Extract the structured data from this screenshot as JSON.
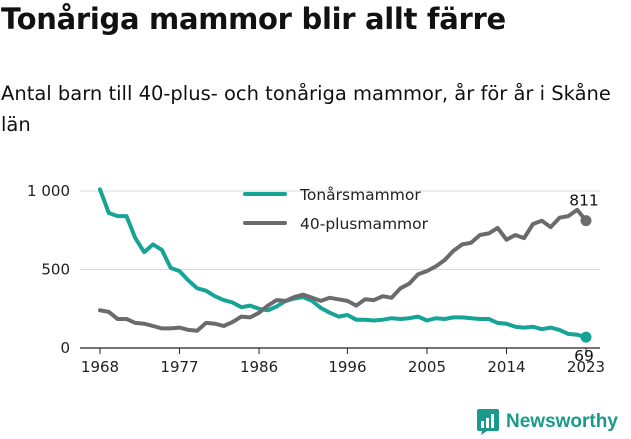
{
  "title": "Tonåriga mammor blir allt färre",
  "subtitle": "Antal barn till 40-plus- och tonåriga mammor, år för år i Skåne län",
  "brand": {
    "name": "Newsworthy",
    "icon": "newsworthy-chart-icon"
  },
  "colors": {
    "teen": "#16a497",
    "forty": "#6b6b6e",
    "grid": "#d9d9d9",
    "axis": "#222222"
  },
  "chart_data": {
    "type": "line",
    "title": "Tonåriga mammor blir allt färre",
    "xlabel": "",
    "ylabel": "",
    "xlim": [
      1968,
      2023
    ],
    "ylim": [
      0,
      1000
    ],
    "yticks": [
      0,
      500,
      1000
    ],
    "ytick_labels": [
      "0",
      "500",
      "1 000"
    ],
    "xticks": [
      1968,
      1977,
      1986,
      1996,
      2005,
      2014,
      2023
    ],
    "xtick_labels": [
      "1968",
      "1977",
      "1986",
      "1996",
      "2005",
      "2014",
      "2023"
    ],
    "grid": true,
    "legend": "top-center",
    "x": [
      1968,
      1969,
      1970,
      1971,
      1972,
      1973,
      1974,
      1975,
      1976,
      1977,
      1978,
      1979,
      1980,
      1981,
      1982,
      1983,
      1984,
      1985,
      1986,
      1987,
      1988,
      1989,
      1990,
      1991,
      1992,
      1993,
      1994,
      1995,
      1996,
      1997,
      1998,
      1999,
      2000,
      2001,
      2002,
      2003,
      2004,
      2005,
      2006,
      2007,
      2008,
      2009,
      2010,
      2011,
      2012,
      2013,
      2014,
      2015,
      2016,
      2017,
      2018,
      2019,
      2020,
      2021,
      2022,
      2023
    ],
    "series": [
      {
        "name": "Tonårsmammor",
        "color": "#16a497",
        "end_label": "69",
        "values": [
          1010,
          860,
          840,
          840,
          700,
          610,
          660,
          625,
          510,
          490,
          430,
          380,
          365,
          330,
          305,
          290,
          260,
          270,
          250,
          240,
          265,
          300,
          315,
          325,
          300,
          255,
          225,
          200,
          210,
          180,
          180,
          175,
          180,
          190,
          185,
          190,
          200,
          175,
          190,
          185,
          195,
          195,
          190,
          185,
          185,
          160,
          155,
          135,
          130,
          135,
          120,
          130,
          115,
          90,
          85,
          69
        ]
      },
      {
        "name": "40-plusmammor",
        "color": "#6b6b6e",
        "end_label": "811",
        "values": [
          240,
          230,
          185,
          185,
          160,
          155,
          140,
          125,
          125,
          130,
          115,
          110,
          160,
          155,
          140,
          165,
          200,
          195,
          225,
          270,
          305,
          300,
          325,
          340,
          320,
          300,
          320,
          310,
          300,
          270,
          310,
          305,
          330,
          320,
          380,
          410,
          470,
          490,
          520,
          560,
          620,
          660,
          670,
          720,
          730,
          765,
          690,
          720,
          700,
          790,
          810,
          770,
          830,
          840,
          880,
          811
        ]
      }
    ]
  }
}
